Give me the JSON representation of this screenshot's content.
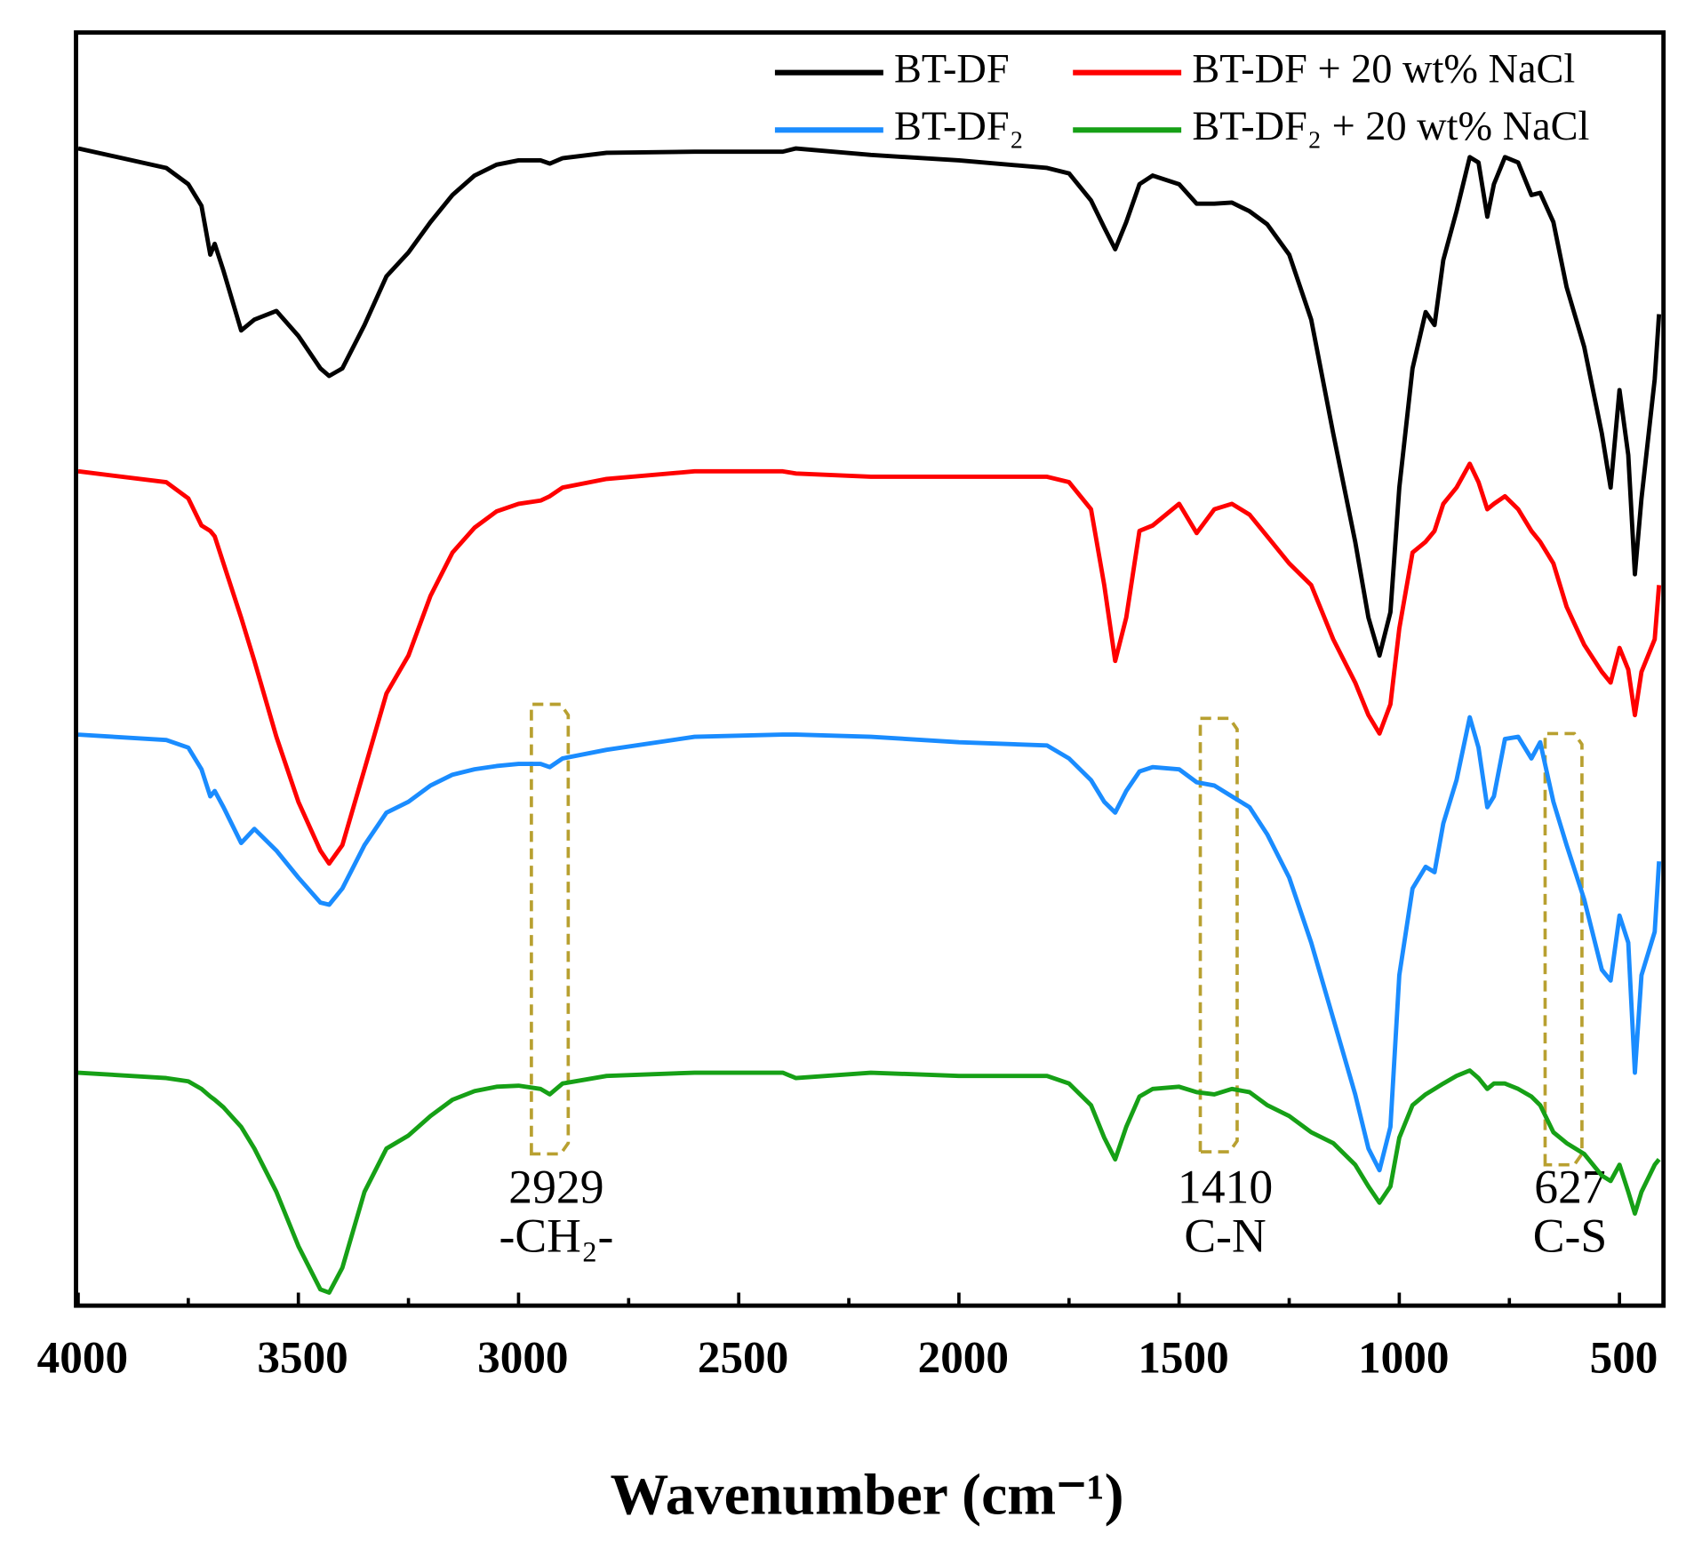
{
  "chart_data": {
    "type": "line",
    "xlabel": "Wavenumber (cm⁻¹)",
    "xlim": [
      4000,
      400
    ],
    "xticks": [
      4000,
      3500,
      3000,
      2500,
      2000,
      1500,
      1000,
      500
    ],
    "xminorticks": [
      3750,
      3250,
      2750,
      2250,
      1750,
      1250,
      750
    ],
    "ylim": [
      0,
      1175
    ],
    "x": [
      4000,
      3800,
      3750,
      3720,
      3700,
      3690,
      3670,
      3630,
      3600,
      3550,
      3500,
      3450,
      3430,
      3400,
      3350,
      3300,
      3250,
      3200,
      3150,
      3100,
      3050,
      3000,
      2950,
      2929,
      2900,
      2800,
      2600,
      2400,
      2370,
      2200,
      2000,
      1800,
      1750,
      1700,
      1670,
      1645,
      1620,
      1590,
      1560,
      1500,
      1460,
      1420,
      1380,
      1340,
      1300,
      1250,
      1200,
      1150,
      1100,
      1070,
      1045,
      1020,
      1000,
      970,
      940,
      920,
      900,
      870,
      840,
      820,
      800,
      785,
      760,
      730,
      700,
      680,
      650,
      620,
      580,
      540,
      520,
      500,
      480,
      465,
      450,
      420,
      410
    ],
    "series": [
      {
        "name": "BT-DF",
        "color": "#000000",
        "values": [
          1068,
          1050,
          1035,
          1015,
          970,
          980,
          955,
          900,
          910,
          918,
          895,
          865,
          858,
          865,
          905,
          950,
          972,
          1000,
          1025,
          1043,
          1053,
          1057,
          1057,
          1054,
          1059,
          1064,
          1065,
          1065,
          1068,
          1062,
          1057,
          1050,
          1045,
          1020,
          995,
          975,
          1000,
          1035,
          1043,
          1035,
          1017,
          1017,
          1018,
          1010,
          998,
          970,
          910,
          805,
          705,
          635,
          600,
          640,
          755,
          865,
          917,
          905,
          965,
          1010,
          1060,
          1055,
          1005,
          1035,
          1060,
          1055,
          1025,
          1027,
          1000,
          940,
          885,
          805,
          755,
          845,
          785,
          675,
          745,
          855,
          915
        ]
      },
      {
        "name": "BT-DF + 20 wt% NaCl",
        "color": "#ff0000",
        "values": [
          770,
          760,
          745,
          720,
          715,
          710,
          685,
          635,
          595,
          525,
          465,
          420,
          408,
          425,
          495,
          565,
          600,
          655,
          695,
          718,
          733,
          740,
          743,
          747,
          755,
          763,
          770,
          770,
          768,
          765,
          765,
          765,
          760,
          735,
          665,
          595,
          635,
          715,
          720,
          740,
          713,
          735,
          740,
          730,
          710,
          685,
          665,
          615,
          575,
          545,
          528,
          555,
          625,
          695,
          705,
          715,
          740,
          755,
          777,
          760,
          735,
          740,
          747,
          735,
          715,
          705,
          685,
          645,
          610,
          585,
          575,
          607,
          587,
          545,
          585,
          615,
          665
        ]
      },
      {
        "name": "BT-DF₂",
        "color": "#1a8cff",
        "values": [
          527,
          522,
          515,
          495,
          470,
          475,
          460,
          427,
          440,
          420,
          395,
          372,
          370,
          385,
          425,
          455,
          465,
          480,
          490,
          495,
          498,
          500,
          500,
          497,
          505,
          513,
          525,
          527,
          527,
          525,
          520,
          517,
          505,
          485,
          465,
          455,
          475,
          493,
          497,
          495,
          483,
          480,
          470,
          460,
          435,
          395,
          335,
          265,
          195,
          145,
          125,
          165,
          305,
          385,
          405,
          400,
          445,
          485,
          543,
          515,
          460,
          470,
          523,
          525,
          505,
          520,
          465,
          425,
          375,
          310,
          300,
          360,
          335,
          215,
          305,
          345,
          410
        ]
      },
      {
        "name": "BT-DF₂ + 20 wt% NaCl",
        "color": "#16a016",
        "values": [
          215,
          210,
          207,
          200,
          193,
          190,
          183,
          165,
          145,
          105,
          55,
          15,
          12,
          35,
          105,
          145,
          157,
          175,
          190,
          198,
          202,
          203,
          200,
          195,
          205,
          212,
          215,
          215,
          210,
          215,
          212,
          212,
          205,
          185,
          155,
          135,
          165,
          193,
          200,
          202,
          197,
          195,
          200,
          197,
          185,
          175,
          160,
          150,
          130,
          110,
          95,
          110,
          155,
          185,
          195,
          200,
          205,
          212,
          217,
          210,
          200,
          205,
          205,
          200,
          193,
          185,
          160,
          150,
          140,
          120,
          115,
          130,
          105,
          85,
          105,
          130,
          135
        ]
      }
    ],
    "annotations": [
      {
        "x": 2929,
        "label": "2929",
        "group": "-CH₂-"
      },
      {
        "x": 1410,
        "label": "1410",
        "group": "C-N"
      },
      {
        "x": 627,
        "label": "627",
        "group": "C-S"
      }
    ],
    "annotation_color": "#b8a030"
  }
}
